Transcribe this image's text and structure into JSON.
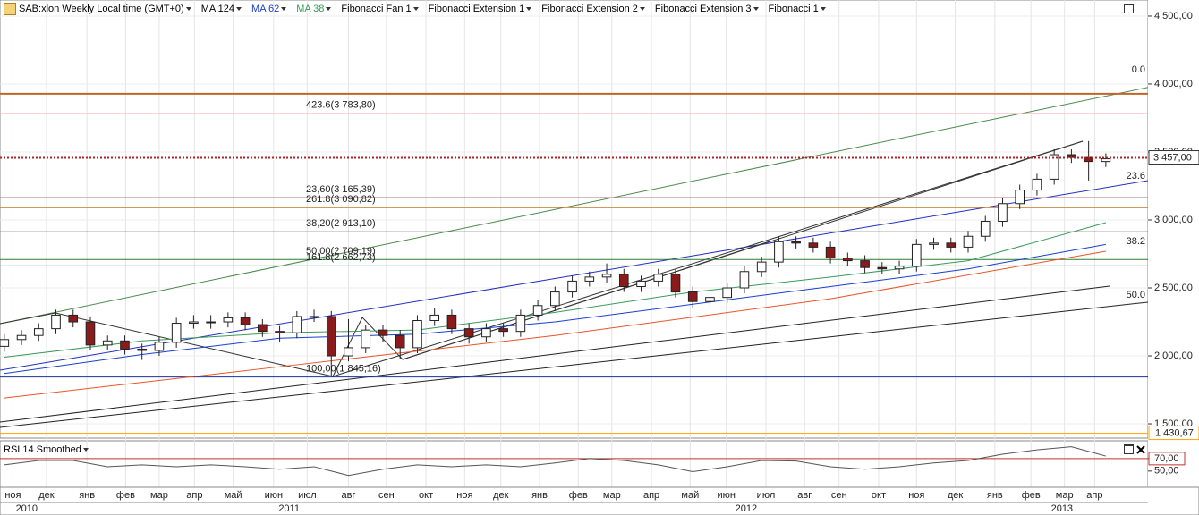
{
  "chart_data": [
    {
      "type": "candlestick",
      "title": "SAB:xlon Weekly Local time (GMT+0)",
      "drawings": [
        "Fibonacci Fan 1",
        "Fibonacci Extension 1",
        "Fibonacci Extension 2",
        "Fibonacci Extension 3",
        "Fibonacci 1"
      ],
      "x": [
        0,
        2,
        4,
        6,
        8,
        10,
        12,
        14,
        16,
        18,
        20,
        22,
        24,
        26,
        28,
        30,
        32,
        34,
        36,
        38,
        40,
        42,
        44,
        46,
        48,
        50,
        52,
        54,
        56,
        58,
        60,
        62,
        64,
        66,
        68,
        70,
        72,
        74,
        76,
        78,
        80,
        82,
        84,
        86,
        88,
        90,
        92,
        94,
        96,
        98,
        100,
        102,
        104,
        106,
        108,
        110,
        112,
        114,
        116,
        118,
        120,
        122,
        124,
        126,
        128
      ],
      "open": [
        2070,
        2120,
        2150,
        2200,
        2300,
        2250,
        2080,
        2110,
        2050,
        2040,
        2100,
        2240,
        2250,
        2250,
        2280,
        2230,
        2180,
        2170,
        2290,
        2290,
        2000,
        2060,
        2190,
        2150,
        2060,
        2260,
        2300,
        2200,
        2140,
        2200,
        2180,
        2300,
        2370,
        2470,
        2550,
        2580,
        2600,
        2510,
        2550,
        2600,
        2470,
        2400,
        2430,
        2500,
        2620,
        2690,
        2840,
        2830,
        2800,
        2720,
        2700,
        2650,
        2640,
        2660,
        2820,
        2830,
        2800,
        2880,
        2990,
        3120,
        3220,
        3300,
        3480,
        3460,
        3430
      ],
      "high": [
        2160,
        2190,
        2240,
        2340,
        2340,
        2290,
        2150,
        2150,
        2090,
        2140,
        2280,
        2300,
        2300,
        2320,
        2320,
        2270,
        2220,
        2330,
        2340,
        2330,
        2270,
        2230,
        2230,
        2190,
        2300,
        2350,
        2340,
        2240,
        2240,
        2240,
        2340,
        2410,
        2510,
        2590,
        2620,
        2680,
        2640,
        2590,
        2640,
        2640,
        2510,
        2470,
        2540,
        2660,
        2730,
        2880,
        2880,
        2870,
        2840,
        2760,
        2740,
        2690,
        2700,
        2860,
        2870,
        2870,
        2920,
        3030,
        3160,
        3260,
        3340,
        3520,
        3520,
        3580,
        3490
      ],
      "low": [
        2030,
        2080,
        2110,
        2160,
        2210,
        2040,
        2040,
        2010,
        1970,
        2000,
        2060,
        2200,
        2200,
        2210,
        2190,
        2140,
        2100,
        2130,
        2250,
        1850,
        1960,
        2020,
        2100,
        1980,
        2020,
        2220,
        2160,
        2090,
        2100,
        2140,
        2140,
        2260,
        2330,
        2430,
        2510,
        2540,
        2470,
        2470,
        2510,
        2430,
        2350,
        2360,
        2390,
        2460,
        2580,
        2650,
        2790,
        2760,
        2680,
        2660,
        2610,
        2600,
        2600,
        2620,
        2780,
        2760,
        2760,
        2840,
        2950,
        3080,
        3180,
        3260,
        3420,
        3290,
        3390
      ],
      "close": [
        2120,
        2150,
        2200,
        2300,
        2250,
        2080,
        2110,
        2050,
        2040,
        2100,
        2240,
        2250,
        2250,
        2280,
        2230,
        2180,
        2170,
        2290,
        2290,
        2000,
        2060,
        2190,
        2150,
        2060,
        2260,
        2300,
        2200,
        2140,
        2200,
        2180,
        2300,
        2370,
        2470,
        2550,
        2580,
        2600,
        2510,
        2550,
        2600,
        2470,
        2400,
        2430,
        2500,
        2620,
        2690,
        2840,
        2830,
        2800,
        2720,
        2700,
        2650,
        2640,
        2660,
        2820,
        2830,
        2800,
        2880,
        2990,
        3120,
        3220,
        3300,
        3480,
        3460,
        3430,
        3450
      ],
      "up_color": "#ffffff",
      "down_color": "#8b1a1a",
      "series": [
        {
          "name": "MA 124",
          "color": "#e8552a",
          "x": [
            0,
            32,
            64,
            96,
            128
          ],
          "values": [
            1690,
            1920,
            2150,
            2420,
            2770
          ]
        },
        {
          "name": "MA 62",
          "color": "#1a3fcc",
          "x": [
            0,
            16,
            32,
            48,
            64,
            80,
            96,
            112,
            128
          ],
          "values": [
            1870,
            2010,
            2130,
            2160,
            2250,
            2380,
            2510,
            2640,
            2820
          ]
        },
        {
          "name": "MA 38",
          "color": "#3a9a5a",
          "x": [
            0,
            16,
            32,
            48,
            64,
            80,
            96,
            112,
            128
          ],
          "values": [
            1990,
            2110,
            2170,
            2190,
            2320,
            2470,
            2580,
            2700,
            2980
          ]
        }
      ],
      "xlim": [
        -0.5,
        132.9
      ],
      "ylim": [
        1395,
        4605
      ],
      "yticks": [
        {
          "value": 4500,
          "label": "4 500,00"
        },
        {
          "value": 4000,
          "label": "4 000,00"
        },
        {
          "value": 3500,
          "label": "3 500,00"
        },
        {
          "value": 3000,
          "label": "3 000,00"
        },
        {
          "value": 2500,
          "label": "2 500,00"
        },
        {
          "value": 2000,
          "label": "2 000,00"
        },
        {
          "value": 1500,
          "label": "1 500,00"
        }
      ],
      "xticks": [
        {
          "value": 1,
          "label": "ноя"
        },
        {
          "value": 4.9,
          "label": "дек"
        },
        {
          "value": 9.6,
          "label": "янв"
        },
        {
          "value": 14.1,
          "label": "фев"
        },
        {
          "value": 18,
          "label": "мар"
        },
        {
          "value": 22.1,
          "label": "апр"
        },
        {
          "value": 26.6,
          "label": "май"
        },
        {
          "value": 31.3,
          "label": "июн"
        },
        {
          "value": 35.2,
          "label": "июл"
        },
        {
          "value": 40,
          "label": "авг"
        },
        {
          "value": 44.4,
          "label": "сен"
        },
        {
          "value": 49,
          "label": "окт"
        },
        {
          "value": 53.5,
          "label": "ноя"
        },
        {
          "value": 57.7,
          "label": "дек"
        },
        {
          "value": 62.2,
          "label": "янв"
        },
        {
          "value": 66.7,
          "label": "фев"
        },
        {
          "value": 70.6,
          "label": "мар"
        },
        {
          "value": 75.2,
          "label": "апр"
        },
        {
          "value": 79.7,
          "label": "май"
        },
        {
          "value": 83.9,
          "label": "июн"
        },
        {
          "value": 88.5,
          "label": "июл"
        },
        {
          "value": 93,
          "label": "авг"
        },
        {
          "value": 97,
          "label": "сен"
        },
        {
          "value": 101.6,
          "label": "окт"
        },
        {
          "value": 106,
          "label": "ноя"
        },
        {
          "value": 110.5,
          "label": "дек"
        },
        {
          "value": 115.1,
          "label": "янв"
        },
        {
          "value": 119.3,
          "label": "фев"
        },
        {
          "value": 123.2,
          "label": "мар"
        },
        {
          "value": 126.7,
          "label": "апр"
        }
      ],
      "year_ticks": [
        {
          "value": 2.6,
          "label": "2010"
        },
        {
          "value": 33.1,
          "label": "2011"
        },
        {
          "value": 86.2,
          "label": "2012"
        },
        {
          "value": 122.9,
          "label": "2013"
        }
      ],
      "last_price": {
        "value": 3457,
        "label": "3 457,00",
        "color": "#b22222"
      },
      "levels": [
        {
          "value": 3928,
          "color": "#c0642a"
        },
        {
          "value": 3783.8,
          "label": "423.6(3 783,80)",
          "color": "#f4b8c0"
        },
        {
          "value": 3165.39,
          "label": "23,60(3 165,39)",
          "color": "#c09090"
        },
        {
          "value": 3090.82,
          "label": "261.8(3 090,82)",
          "color": "#c07820"
        },
        {
          "value": 2913.1,
          "label": "38,20(2 913,10)",
          "color": "#555555"
        },
        {
          "value": 2709.19,
          "label": "50,00(2 709,19)",
          "color": "#2e7d32"
        },
        {
          "value": 2662.73,
          "label": "161.8(2 662,73)",
          "color": "#9ab89a"
        },
        {
          "value": 1845.16,
          "label": "100,00(1 845,16)",
          "color": "#1a2fa0"
        },
        {
          "value": 1430.67,
          "label": "1 430,67",
          "color": "#ffa500",
          "axis": true
        }
      ],
      "fan_levels": [
        {
          "value": 0,
          "label": "0.0"
        },
        {
          "value": 23.6,
          "label": "23.6"
        },
        {
          "value": 38.2,
          "label": "38.2"
        },
        {
          "value": 50,
          "label": "50.0"
        }
      ]
    },
    {
      "type": "line",
      "title": "RSI 14 Smoothed",
      "color": "#555555",
      "x": [
        0,
        4,
        8,
        12,
        16,
        20,
        24,
        28,
        32,
        36,
        40,
        44,
        48,
        52,
        56,
        60,
        64,
        68,
        72,
        76,
        80,
        84,
        88,
        92,
        96,
        100,
        104,
        108,
        112,
        116,
        120,
        124,
        128
      ],
      "values": [
        60,
        67,
        67,
        57,
        60,
        57,
        60,
        57,
        53,
        57,
        43,
        53,
        60,
        57,
        60,
        57,
        63,
        70,
        67,
        60,
        49,
        57,
        67,
        66,
        57,
        53,
        57,
        63,
        67,
        77,
        84,
        89,
        74
      ],
      "ylim": [
        24,
        97
      ],
      "yticks": [
        {
          "value": 70,
          "label": "70,00"
        },
        {
          "value": 50,
          "label": "50,00"
        }
      ],
      "level": {
        "value": 70,
        "color": "#c03030"
      }
    }
  ]
}
